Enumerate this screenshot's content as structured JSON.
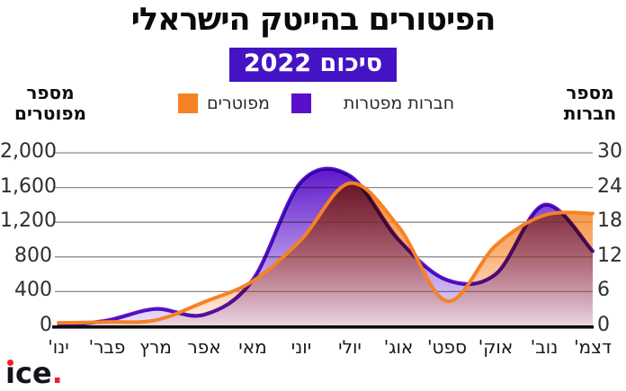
{
  "header": {
    "title": "הפיטורים בהייטק הישראלי",
    "badge": "סיכום 2022"
  },
  "axes": {
    "left_title_line1": "מספר",
    "left_title_line2": "מפוטרים",
    "right_title_line1": "מספר",
    "right_title_line2": "חברות"
  },
  "colors": {
    "orange": "#f58224",
    "purple": "#5a10c9",
    "badge_bg": "#4414c4",
    "grid": "#8c8c8c",
    "axis_line": "#0d0d0d",
    "logo_red": "#e8232a",
    "logo_dark": "#14141d"
  },
  "logo": {
    "text": "ıce",
    "period": "."
  },
  "chart_data": {
    "type": "area",
    "title": "הפיטורים בהייטק הישראלי",
    "subtitle": "סיכום 2022",
    "categories": [
      "ינו'",
      "פבר'",
      "מרץ",
      "אפר",
      "מאי",
      "יוני",
      "יולי",
      "אוג'",
      "ספט'",
      "אוק'",
      "נוב'",
      "דצמ'"
    ],
    "series": [
      {
        "name": "מפוטרים",
        "axis": "left",
        "color": "#f58224",
        "values": [
          40,
          50,
          70,
          280,
          520,
          1000,
          1650,
          1150,
          290,
          930,
          1280,
          1300
        ]
      },
      {
        "name": "חברות מפטרות",
        "axis": "right",
        "color": "#5a10c9",
        "values": [
          0,
          1,
          3,
          2,
          8,
          25,
          26,
          15,
          8,
          9,
          21,
          13
        ]
      }
    ],
    "left_axis": {
      "title": "מספר מפוטרים",
      "min": 0,
      "max": 2000,
      "ticks": [
        "2,000",
        "1,600",
        "1,200",
        "800",
        "400",
        "0"
      ]
    },
    "right_axis": {
      "title": "מספר חברות",
      "min": 0,
      "max": 30,
      "ticks": [
        "30",
        "24",
        "18",
        "12",
        "6",
        "0"
      ]
    },
    "legend_position": "top",
    "grid": true
  }
}
